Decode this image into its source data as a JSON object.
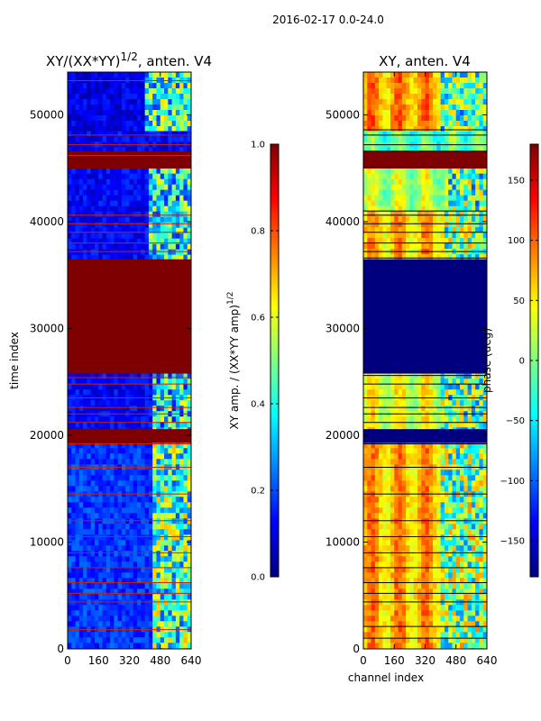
{
  "figure": {
    "title": "2016-02-17 0.0-24.0"
  },
  "colors": {
    "jet": [
      "#00007f",
      "#0000ff",
      "#007fff",
      "#00ffff",
      "#7fff7f",
      "#ffff00",
      "#ff7f00",
      "#ff0000",
      "#7f0000"
    ],
    "grid_line_amp": "#cc2200",
    "grid_line_phase": "#000000"
  },
  "chart_data": [
    {
      "type": "heatmap",
      "title": "XY/(XX*YY)",
      "title_sup": "1/2",
      "title_suffix": ", anten. V4",
      "xlabel": "",
      "ylabel": "time index",
      "xlim": [
        0,
        640
      ],
      "ylim": [
        0,
        54000
      ],
      "xticks": [
        0,
        160,
        320,
        480,
        640
      ],
      "yticks": [
        0,
        10000,
        20000,
        30000,
        40000,
        50000
      ],
      "colorbar": {
        "label": "XY amp. / (XX*YY amp)",
        "label_sup": "1/2",
        "range": [
          0,
          1
        ],
        "ticks": [
          "0.0",
          "0.2",
          "0.4",
          "0.6",
          "0.8",
          "1.0"
        ]
      },
      "bands": [
        {
          "y0": 0,
          "y1": 19300,
          "base": 0.18,
          "active_from": 430,
          "active_value": 0.45
        },
        {
          "y0": 19300,
          "y1": 20600,
          "base": 1.0
        },
        {
          "y0": 20600,
          "y1": 25800,
          "base": 0.12,
          "active_from": 430,
          "active_value": 0.38
        },
        {
          "y0": 25800,
          "y1": 36500,
          "base": 1.0
        },
        {
          "y0": 36500,
          "y1": 45000,
          "base": 0.12,
          "active_from": 410,
          "active_value": 0.4
        },
        {
          "y0": 45000,
          "y1": 46600,
          "base": 1.0
        },
        {
          "y0": 46600,
          "y1": 48500,
          "base": 0.12
        },
        {
          "y0": 48500,
          "y1": 54000,
          "base": 0.1,
          "active_from": 400,
          "active_value": 0.42
        }
      ],
      "flag_rows": [
        1800,
        4400,
        5200,
        6200,
        7600,
        9000,
        10500,
        12000,
        14500,
        17000,
        19200,
        21200,
        22000,
        22600,
        23500,
        24800,
        25400,
        37200,
        38000,
        39000,
        39800,
        40600,
        46200,
        47200,
        48100,
        53200
      ]
    },
    {
      "type": "heatmap",
      "title": "XY, anten. V4",
      "xlabel": "channel index",
      "ylabel": "",
      "xlim": [
        0,
        640
      ],
      "ylim": [
        0,
        54000
      ],
      "xticks": [
        0,
        160,
        320,
        480,
        640
      ],
      "yticks": [
        0,
        10000,
        20000,
        30000,
        40000,
        50000
      ],
      "colorbar": {
        "label": "phase (deg)",
        "range": [
          -180,
          180
        ],
        "ticks": [
          "−150",
          "−100",
          "−50",
          "0",
          "50",
          "100",
          "150"
        ]
      },
      "bands": [
        {
          "y0": 0,
          "y1": 19300,
          "base": 0.7,
          "active_from": 400,
          "active_value": 0.5
        },
        {
          "y0": 19300,
          "y1": 20600,
          "base": 0.0
        },
        {
          "y0": 20600,
          "y1": 25800,
          "base": 0.6,
          "active_from": 400,
          "active_value": 0.45
        },
        {
          "y0": 25800,
          "y1": 36500,
          "base": 0.0
        },
        {
          "y0": 36500,
          "y1": 41000,
          "base": 0.68,
          "active_from": 420,
          "active_value": 0.5
        },
        {
          "y0": 41000,
          "y1": 45000,
          "base": 0.55,
          "active_from": 430,
          "active_value": 0.45
        },
        {
          "y0": 45000,
          "y1": 46600,
          "base": 1.0
        },
        {
          "y0": 46600,
          "y1": 48500,
          "base": 0.45
        },
        {
          "y0": 48500,
          "y1": 54000,
          "base": 0.72,
          "active_from": 400,
          "active_value": 0.45
        }
      ],
      "flag_rows": [
        1000,
        2100,
        4400,
        5200,
        6200,
        7600,
        9000,
        10500,
        12000,
        14500,
        17000,
        19200,
        21200,
        22000,
        22600,
        23500,
        24800,
        25600,
        36600,
        37200,
        38000,
        39000,
        39800,
        40600,
        41000,
        45100,
        46600,
        47200,
        48100,
        48600
      ]
    }
  ]
}
